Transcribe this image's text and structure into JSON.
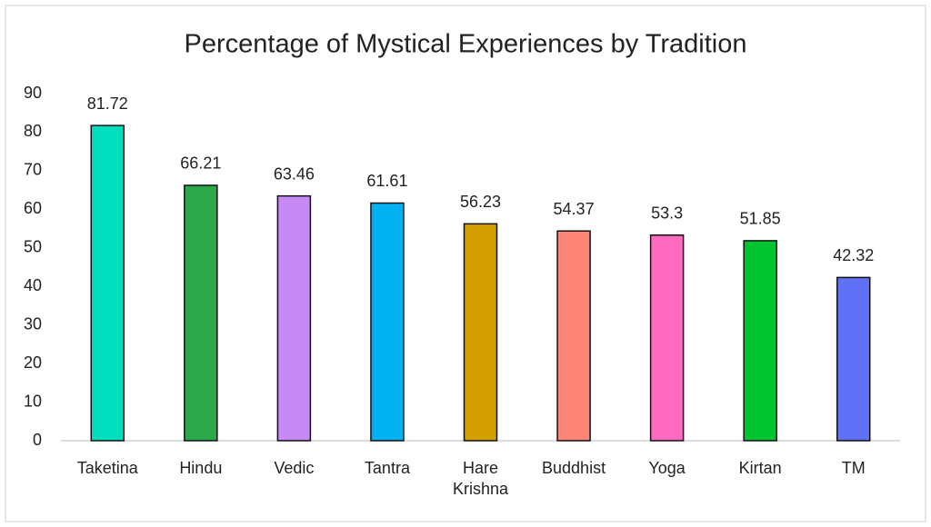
{
  "chart_data": {
    "type": "bar",
    "title": "Percentage of Mystical Experiences by Tradition",
    "categories": [
      "Taketina",
      "Hindu",
      "Vedic",
      "Tantra",
      "Hare Krishna",
      "Buddhist",
      "Yoga",
      "Kirtan",
      "TM"
    ],
    "values": [
      81.72,
      66.21,
      63.46,
      61.61,
      56.23,
      54.37,
      53.3,
      51.85,
      42.32
    ],
    "colors": [
      "#00dfbd",
      "#2aa84a",
      "#c68af5",
      "#00b0f0",
      "#d4a000",
      "#ff8578",
      "#ff6ac1",
      "#00c531",
      "#6171f5"
    ],
    "ylim": [
      0,
      90
    ],
    "yticks": [
      0,
      10,
      20,
      30,
      40,
      50,
      60,
      70,
      80,
      90
    ],
    "grid": false
  }
}
